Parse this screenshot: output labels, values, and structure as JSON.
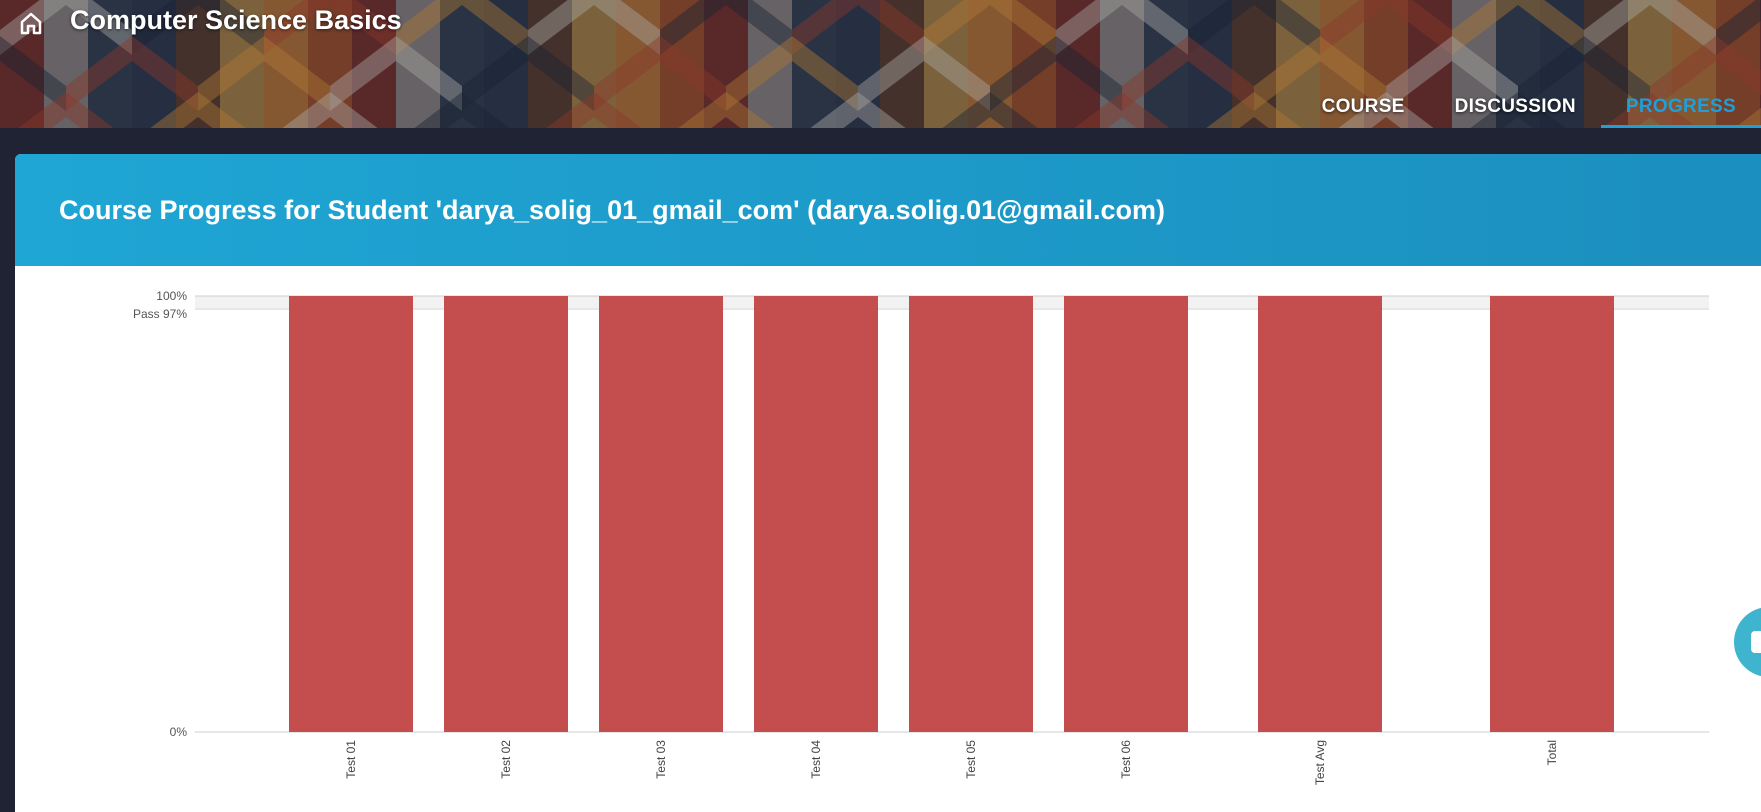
{
  "header": {
    "course_title": "Computer Science Basics",
    "home_icon": "home-icon",
    "tabs": [
      {
        "label": "COURSE",
        "active": false
      },
      {
        "label": "DISCUSSION",
        "active": false
      },
      {
        "label": "PROGRESS",
        "active": true
      }
    ]
  },
  "progress": {
    "title": "Course Progress for Student 'darya_solig_01_gmail_com' (darya.solig.01@gmail.com)"
  },
  "colors": {
    "accent": "#1e9fd6",
    "bar": "#c44e4e",
    "card_header": "#1fa6d4"
  },
  "chart_data": {
    "type": "bar",
    "categories": [
      "Test 01",
      "Test 02",
      "Test 03",
      "Test 04",
      "Test 05",
      "Test 06",
      "Test Avg",
      "Total"
    ],
    "values": [
      100,
      100,
      100,
      100,
      100,
      100,
      100,
      100
    ],
    "ylim": [
      0,
      100
    ],
    "y_ticks": [
      "0%",
      "100%"
    ],
    "pass_line": {
      "label": "Pass 97%",
      "value": 97
    },
    "grid": false,
    "legend": "none"
  }
}
